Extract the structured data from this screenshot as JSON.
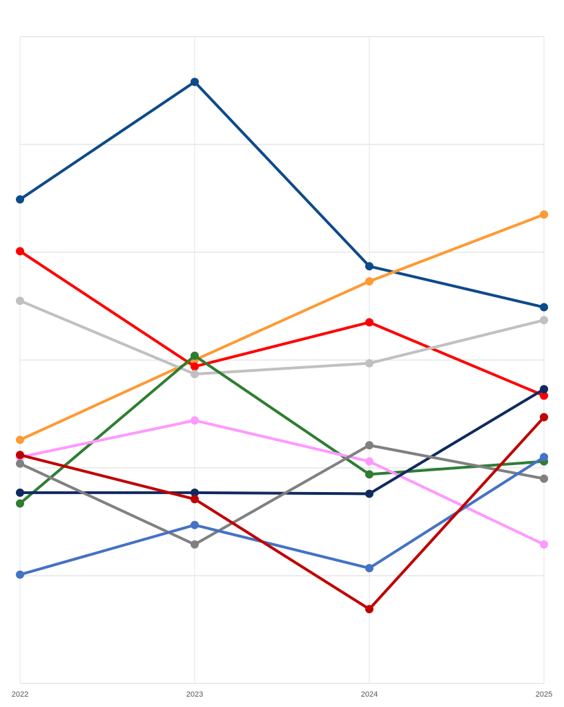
{
  "chart_data": {
    "type": "line",
    "x": [
      2022,
      2023,
      2024,
      2025
    ],
    "xlim": [
      2022,
      2025
    ],
    "xticks": [
      2022,
      2023,
      2024,
      2025
    ],
    "ylim": [
      0,
      6
    ],
    "yticks": [
      0,
      1,
      2,
      3,
      4,
      5,
      6
    ],
    "ytick_labels": false,
    "grid": true,
    "series": [
      {
        "color": "#0d4a8a",
        "values": [
          4.49,
          5.58,
          3.87,
          3.49
        ]
      },
      {
        "color": "#ff9933",
        "values": [
          2.26,
          3.0,
          3.73,
          4.35
        ]
      },
      {
        "color": "#ff0000",
        "values": [
          4.01,
          2.94,
          3.35,
          2.67
        ]
      },
      {
        "color": "#c0c0c0",
        "values": [
          3.55,
          2.87,
          2.97,
          3.37
        ]
      },
      {
        "color": "#2e7d32",
        "values": [
          1.67,
          3.04,
          1.94,
          2.06
        ]
      },
      {
        "color": "#ff99ff",
        "values": [
          2.1,
          2.44,
          2.06,
          1.29
        ]
      },
      {
        "color": "#0f2a5e",
        "values": [
          1.77,
          1.77,
          1.76,
          2.73
        ]
      },
      {
        "color": "#808080",
        "values": [
          2.04,
          1.29,
          2.21,
          1.9
        ]
      },
      {
        "color": "#4472c4",
        "values": [
          1.01,
          1.47,
          1.07,
          2.1
        ]
      },
      {
        "color": "#c00000",
        "values": [
          2.12,
          1.71,
          0.69,
          2.47
        ]
      }
    ]
  }
}
